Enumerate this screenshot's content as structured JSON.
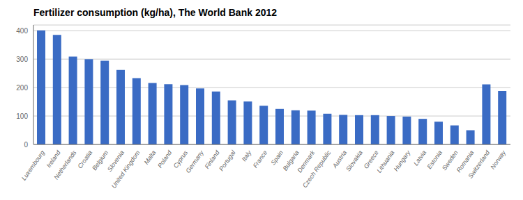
{
  "chart_data": {
    "type": "bar",
    "title": "Fertilizer consumption (kg/ha), The World Bank 2012",
    "categories": [
      "Luxembourg",
      "Ireland",
      "Netherlands",
      "Croatia",
      "Belgium",
      "Slovenia",
      "United Kingdom",
      "Malta",
      "Poland",
      "Cyprus",
      "Germany",
      "Finland",
      "Portugal",
      "Italy",
      "France",
      "Spain",
      "Bulgaria",
      "Denmark",
      "Czech Republic",
      "Austria",
      "Slovakia",
      "Greece",
      "Lithuania",
      "Hungary",
      "Latvia",
      "Estonia",
      "Sweden",
      "Romania",
      "Switzerland",
      "Norway"
    ],
    "values": [
      401,
      385,
      309,
      300,
      294,
      262,
      233,
      216,
      212,
      209,
      197,
      186,
      155,
      151,
      136,
      125,
      120,
      119,
      108,
      104,
      103,
      103,
      100,
      98,
      90,
      80,
      67,
      50,
      211,
      188
    ],
    "color": "#3A6BC4",
    "ylim": [
      0,
      420
    ],
    "yticks": [
      0,
      100,
      200,
      300,
      400
    ],
    "grid": true
  }
}
